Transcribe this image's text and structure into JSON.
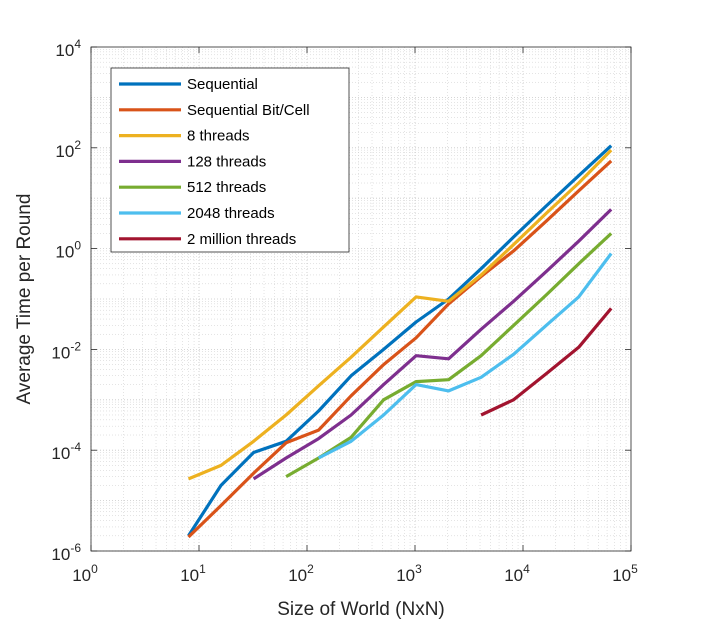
{
  "chart_data": {
    "type": "line",
    "title": "",
    "xlabel": "Size of World (NxN)",
    "ylabel": "Average Time per Round",
    "x_scale": "log",
    "y_scale": "log",
    "xlim": [
      1,
      100000
    ],
    "ylim": [
      1e-06,
      10000
    ],
    "x_ticks": [
      {
        "value": 1,
        "base": "10",
        "exp": "0"
      },
      {
        "value": 10,
        "base": "10",
        "exp": "1"
      },
      {
        "value": 100,
        "base": "10",
        "exp": "2"
      },
      {
        "value": 1000,
        "base": "10",
        "exp": "3"
      },
      {
        "value": 10000,
        "base": "10",
        "exp": "4"
      },
      {
        "value": 100000,
        "base": "10",
        "exp": "5"
      }
    ],
    "y_ticks": [
      {
        "value": 1e-06,
        "base": "10",
        "exp": "-6"
      },
      {
        "value": 0.0001,
        "base": "10",
        "exp": "-4"
      },
      {
        "value": 0.01,
        "base": "10",
        "exp": "-2"
      },
      {
        "value": 1,
        "base": "10",
        "exp": "0"
      },
      {
        "value": 100,
        "base": "10",
        "exp": "2"
      },
      {
        "value": 10000,
        "base": "10",
        "exp": "4"
      }
    ],
    "grid": "major and minor, dotted",
    "legend_position": "top-left",
    "series": [
      {
        "name": "Sequential",
        "color": "#0072BD",
        "points": [
          [
            8,
            2e-06
          ],
          [
            16,
            2e-05
          ],
          [
            32,
            9e-05
          ],
          [
            64,
            0.00015
          ],
          [
            128,
            0.0006
          ],
          [
            256,
            0.003
          ],
          [
            512,
            0.01
          ],
          [
            1024,
            0.035
          ],
          [
            2048,
            0.1
          ],
          [
            4096,
            0.4
          ],
          [
            8192,
            1.7
          ],
          [
            16384,
            7
          ],
          [
            32768,
            28
          ],
          [
            65536,
            110
          ]
        ]
      },
      {
        "name": "Sequential Bit/Cell",
        "color": "#D95319",
        "points": [
          [
            8,
            1.9e-06
          ],
          [
            16,
            8e-06
          ],
          [
            32,
            3.5e-05
          ],
          [
            64,
            0.00014
          ],
          [
            128,
            0.00025
          ],
          [
            256,
            0.0012
          ],
          [
            512,
            0.005
          ],
          [
            1024,
            0.017
          ],
          [
            2048,
            0.08
          ],
          [
            4096,
            0.28
          ],
          [
            8192,
            0.9
          ],
          [
            16384,
            3.5
          ],
          [
            32768,
            14
          ],
          [
            65536,
            55
          ]
        ]
      },
      {
        "name": "8 threads",
        "color": "#EDB120",
        "points": [
          [
            8,
            2.7e-05
          ],
          [
            16,
            5e-05
          ],
          [
            32,
            0.00015
          ],
          [
            64,
            0.0005
          ],
          [
            128,
            0.0019
          ],
          [
            256,
            0.007
          ],
          [
            512,
            0.028
          ],
          [
            1024,
            0.11
          ],
          [
            2048,
            0.09
          ],
          [
            4096,
            0.3
          ],
          [
            8192,
            1.2
          ],
          [
            16384,
            5
          ],
          [
            32768,
            20
          ],
          [
            65536,
            90
          ]
        ]
      },
      {
        "name": "128 threads",
        "color": "#7E2F8E",
        "points": [
          [
            32,
            2.7e-05
          ],
          [
            64,
            7e-05
          ],
          [
            128,
            0.00017
          ],
          [
            256,
            0.0005
          ],
          [
            512,
            0.002
          ],
          [
            1024,
            0.0075
          ],
          [
            2048,
            0.0065
          ],
          [
            4096,
            0.025
          ],
          [
            8192,
            0.09
          ],
          [
            16384,
            0.35
          ],
          [
            32768,
            1.4
          ],
          [
            65536,
            6
          ]
        ]
      },
      {
        "name": "512 threads",
        "color": "#77AC30",
        "points": [
          [
            64,
            3e-05
          ],
          [
            128,
            7e-05
          ],
          [
            256,
            0.00018
          ],
          [
            512,
            0.001
          ],
          [
            1024,
            0.0023
          ],
          [
            2048,
            0.0025
          ],
          [
            4096,
            0.0075
          ],
          [
            8192,
            0.03
          ],
          [
            16384,
            0.12
          ],
          [
            32768,
            0.5
          ],
          [
            65536,
            2
          ]
        ]
      },
      {
        "name": "2048 threads",
        "color": "#4DBEEE",
        "points": [
          [
            128,
            7e-05
          ],
          [
            256,
            0.00015
          ],
          [
            512,
            0.0005
          ],
          [
            1024,
            0.002
          ],
          [
            2048,
            0.0015
          ],
          [
            4096,
            0.0028
          ],
          [
            8192,
            0.008
          ],
          [
            16384,
            0.03
          ],
          [
            32768,
            0.11
          ],
          [
            65536,
            0.8
          ]
        ]
      },
      {
        "name": "2 million threads",
        "color": "#A2142F",
        "points": [
          [
            4096,
            0.0005
          ],
          [
            8192,
            0.001
          ],
          [
            16384,
            0.0033
          ],
          [
            32768,
            0.011
          ],
          [
            65536,
            0.065
          ]
        ]
      }
    ]
  }
}
